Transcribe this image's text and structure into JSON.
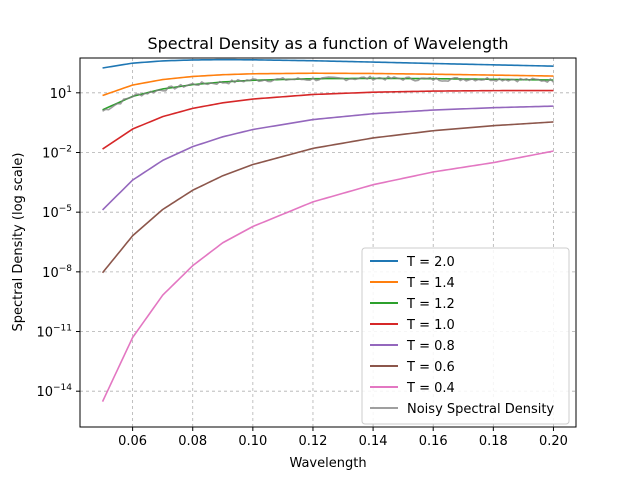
{
  "chart_data": {
    "type": "line",
    "title": "Spectral Density as a function of Wavelength",
    "xlabel": "Wavelength",
    "ylabel": "Spectral Density (log scale)",
    "xlim": [
      0.0425,
      0.2075
    ],
    "ylim_log10": [
      -15.8,
      2.75
    ],
    "yscale": "log",
    "grid": true,
    "legend_position": "lower-right",
    "x_ticks": [
      {
        "value": 0.06,
        "label": "0.06"
      },
      {
        "value": 0.08,
        "label": "0.08"
      },
      {
        "value": 0.1,
        "label": "0.10"
      },
      {
        "value": 0.12,
        "label": "0.12"
      },
      {
        "value": 0.14,
        "label": "0.14"
      },
      {
        "value": 0.16,
        "label": "0.16"
      },
      {
        "value": 0.18,
        "label": "0.18"
      },
      {
        "value": 0.2,
        "label": "0.20"
      }
    ],
    "y_ticks": [
      {
        "exp": 1,
        "base": "10",
        "sup": "1"
      },
      {
        "exp": -2,
        "base": "10",
        "sup": "−2"
      },
      {
        "exp": -5,
        "base": "10",
        "sup": "−5"
      },
      {
        "exp": -8,
        "base": "10",
        "sup": "−8"
      },
      {
        "exp": -11,
        "base": "10",
        "sup": "−11"
      },
      {
        "exp": -14,
        "base": "10",
        "sup": "−14"
      }
    ],
    "x": [
      0.05,
      0.06,
      0.07,
      0.08,
      0.09,
      0.1,
      0.12,
      0.14,
      0.16,
      0.18,
      0.2
    ],
    "series": [
      {
        "name": "T = 2.0",
        "color": "#1f77b4",
        "values": [
          177,
          310,
          402,
          449,
          463,
          456,
          409,
          351,
          298,
          255,
          219
        ]
      },
      {
        "name": "T = 1.4",
        "color": "#ff7f0e",
        "values": [
          7.3,
          24.6,
          46.4,
          66.3,
          81.1,
          90.5,
          96.7,
          93.6,
          86.1,
          77.8,
          69.6
        ]
      },
      {
        "name": "T = 1.2",
        "color": "#2ca02c",
        "values": [
          1.4,
          6.6,
          15.6,
          25.8,
          35.1,
          42.6,
          51.3,
          53.3,
          51.3,
          47.8,
          43.8
        ]
      },
      {
        "name": "T = 1.0",
        "color": "#d62728",
        "values": [
          0.0149,
          0.151,
          0.636,
          1.65,
          3.14,
          4.86,
          8.24,
          10.73,
          12.21,
          12.88,
          13.0
        ]
      },
      {
        "name": "T = 0.8",
        "color": "#9467bd",
        "values": [
          1.3e-05,
          0.00041,
          0.004,
          0.0197,
          0.0614,
          0.143,
          0.452,
          0.89,
          1.36,
          1.79,
          2.14
        ]
      },
      {
        "name": "T = 0.6",
        "color": "#8c564b",
        "values": [
          9e-09,
          6.5e-07,
          1.36e-05,
          0.000127,
          0.00068,
          0.00248,
          0.0161,
          0.0539,
          0.124,
          0.223,
          0.343
        ]
      },
      {
        "name": "T = 0.4",
        "color": "#e377c2",
        "values": [
          3e-15,
          5e-12,
          6.7e-10,
          2.05e-08,
          2.9e-07,
          1.9e-06,
          3.3e-05,
          0.00024,
          0.00105,
          0.0031,
          0.0118
        ]
      },
      {
        "name": "Noisy Spectral Density",
        "color": "#7f7f7f",
        "noisy_of": "T = 1.2",
        "values": [
          1.2,
          6.9,
          14.8,
          27.1,
          33.4,
          44.8,
          49.2,
          56.1,
          48.7,
          50.3,
          41.9
        ]
      }
    ]
  }
}
